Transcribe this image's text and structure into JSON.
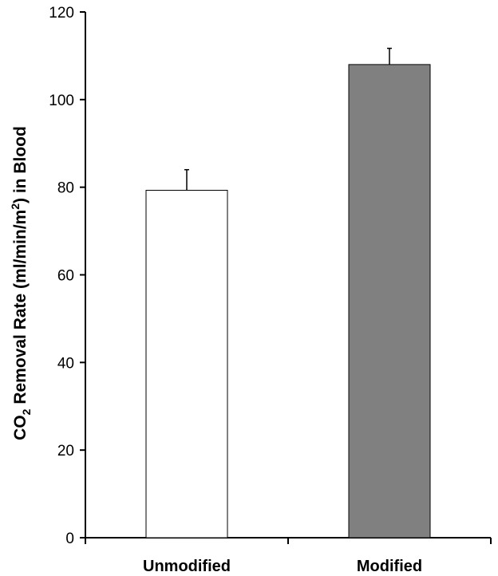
{
  "chart_data": {
    "type": "bar",
    "categories": [
      "Unmodified",
      "Modified"
    ],
    "values": [
      79.3,
      108
    ],
    "error_plus": [
      4.7,
      3.7
    ],
    "bar_colors": [
      "#ffffff",
      "#808080"
    ],
    "bar_outline": "#000000",
    "ylim": [
      0,
      120
    ],
    "yticks": [
      0,
      20,
      40,
      60,
      80,
      100,
      120
    ],
    "ylabel": {
      "prefix": "CO",
      "sub": "2",
      "middle": " Removal Rate (ml/min/m",
      "sup": "2",
      "suffix": ") in Blood"
    },
    "grid": false,
    "legend": "none"
  }
}
